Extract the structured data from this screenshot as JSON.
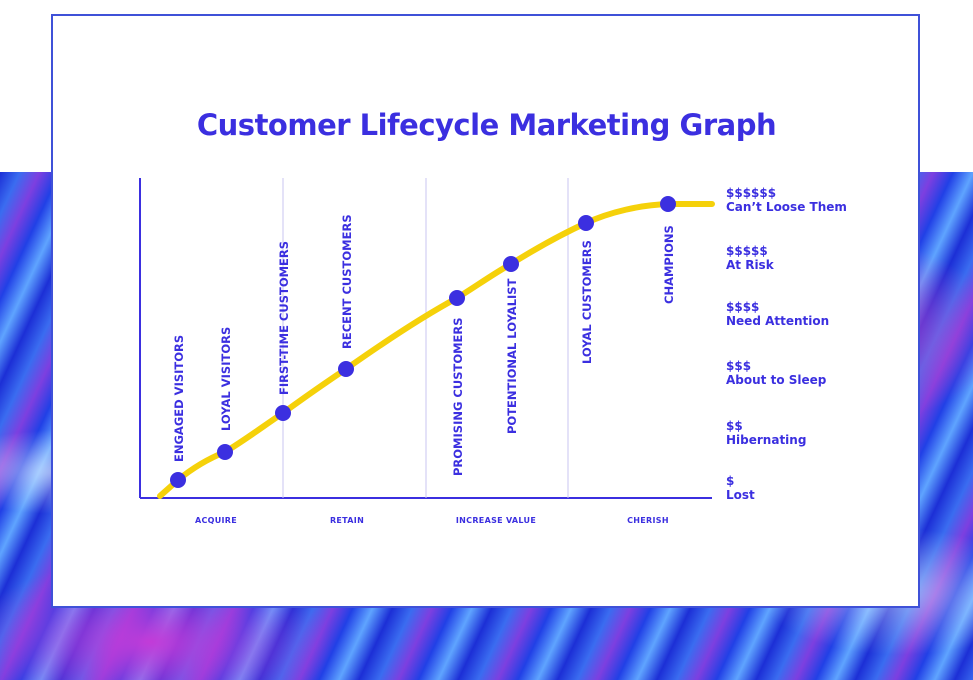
{
  "title": "Customer Lifecycle Marketing Graph",
  "colors": {
    "accent": "#3b2fe0",
    "curve": "#f5d10a",
    "frame": "#3f51d8"
  },
  "segments": [
    "ACQUIRE",
    "RETAIN",
    "INCREASE VALUE",
    "CHERISH"
  ],
  "stages": [
    "ENGAGED VISITORS",
    "LOYAL VISITORS",
    "FIRST-TIME CUSTOMERS",
    "RECENT CUSTOMERS",
    "PROMISING CUSTOMERS",
    "POTENTIONAL LOYALIST",
    "LOYAL CUSTOMERS",
    "CHAMPIONS"
  ],
  "value_tiers": [
    {
      "value": "$$$$$$",
      "name": "Can’t Loose Them"
    },
    {
      "value": "$$$$$",
      "name": "At Risk"
    },
    {
      "value": "$$$$",
      "name": "Need Attention"
    },
    {
      "value": "$$$",
      "name": "About to Sleep"
    },
    {
      "value": "$$",
      "name": "Hibernating"
    },
    {
      "value": "$",
      "name": "Lost"
    }
  ]
}
